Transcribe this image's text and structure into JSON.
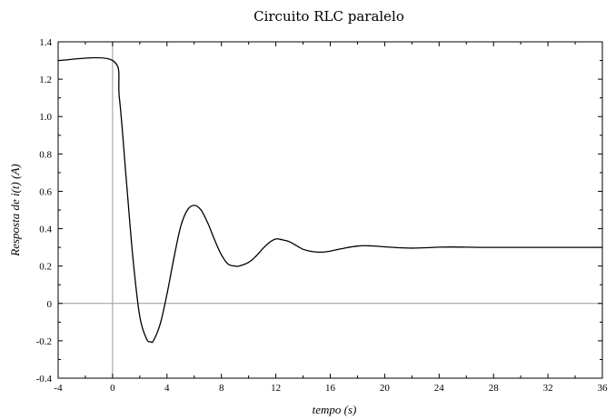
{
  "chart_data": {
    "type": "line",
    "title": "Circuito RLC paralelo",
    "xlabel": "tempo (s)",
    "ylabel": "Resposta de i(t) (A)",
    "xlim": [
      -4,
      36
    ],
    "ylim": [
      -0.4,
      1.4
    ],
    "x_ticks": [
      "-4",
      "0",
      "4",
      "8",
      "12",
      "16",
      "20",
      "24",
      "28",
      "32",
      "36"
    ],
    "y_ticks": [
      "-0.4",
      "-0.2",
      "0",
      "0.2",
      "0.4",
      "0.6",
      "0.8",
      "1.0",
      "1.2",
      "1.4"
    ],
    "reference_lines": {
      "x": 0,
      "y": 0
    },
    "grid": false,
    "series": [
      {
        "color": "#000000",
        "x": [
          -4,
          0,
          0.5,
          1,
          1.5,
          2,
          2.5,
          2.8,
          3,
          3.5,
          4,
          4.5,
          5,
          5.5,
          6,
          6.5,
          7,
          7.5,
          8,
          8.5,
          9,
          9.3,
          10,
          10.5,
          11,
          11.5,
          12,
          12.5,
          13,
          13.5,
          14,
          14.5,
          15,
          15.5,
          16,
          16.5,
          17,
          17.5,
          18,
          18.5,
          19,
          19.5,
          20,
          21,
          22,
          23,
          24,
          25,
          26,
          27,
          28,
          30,
          32,
          34,
          36
        ],
        "y": [
          1.3,
          1.3,
          1.1,
          0.67,
          0.24,
          -0.07,
          -0.19,
          -0.205,
          -0.2,
          -0.11,
          0.05,
          0.24,
          0.41,
          0.5,
          0.525,
          0.5,
          0.43,
          0.34,
          0.26,
          0.21,
          0.2,
          0.2,
          0.22,
          0.25,
          0.29,
          0.325,
          0.345,
          0.34,
          0.33,
          0.31,
          0.29,
          0.28,
          0.275,
          0.275,
          0.28,
          0.288,
          0.295,
          0.302,
          0.307,
          0.309,
          0.308,
          0.306,
          0.303,
          0.298,
          0.296,
          0.298,
          0.301,
          0.302,
          0.301,
          0.3,
          0.3,
          0.3,
          0.3,
          0.3,
          0.3
        ]
      }
    ]
  }
}
